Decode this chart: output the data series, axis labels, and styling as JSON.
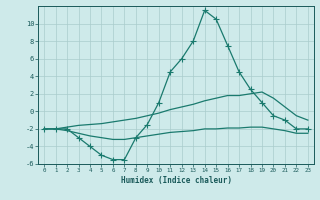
{
  "xlabel": "Humidex (Indice chaleur)",
  "x": [
    0,
    1,
    2,
    3,
    4,
    5,
    6,
    7,
    8,
    9,
    10,
    11,
    12,
    13,
    14,
    15,
    16,
    17,
    18,
    19,
    20,
    21,
    22,
    23
  ],
  "y_main": [
    -2,
    -2,
    -2,
    -3,
    -4,
    -5,
    -5.5,
    -5.5,
    -3,
    -1.5,
    1,
    4.5,
    6,
    8,
    11.5,
    10.5,
    7.5,
    4.5,
    2.5,
    1,
    -0.5,
    -1,
    -2,
    -2
  ],
  "y_upper": [
    -2,
    -2,
    -1.8,
    -1.6,
    -1.5,
    -1.4,
    -1.2,
    -1.0,
    -0.8,
    -0.5,
    -0.2,
    0.2,
    0.5,
    0.8,
    1.2,
    1.5,
    1.8,
    1.8,
    2.0,
    2.2,
    1.5,
    0.5,
    -0.5,
    -1.0
  ],
  "y_lower": [
    -2,
    -2,
    -2.2,
    -2.5,
    -2.8,
    -3.0,
    -3.2,
    -3.2,
    -3.0,
    -2.8,
    -2.6,
    -2.4,
    -2.3,
    -2.2,
    -2.0,
    -2.0,
    -1.9,
    -1.9,
    -1.8,
    -1.8,
    -2.0,
    -2.2,
    -2.5,
    -2.5
  ],
  "line_color": "#1a7a6e",
  "bg_color": "#ceeaea",
  "grid_color": "#aacccc",
  "tick_color": "#1a5a5a",
  "ylim": [
    -6,
    12
  ],
  "xlim": [
    -0.5,
    23.5
  ],
  "yticks": [
    -6,
    -4,
    -2,
    0,
    2,
    4,
    6,
    8,
    10
  ],
  "xticks": [
    0,
    1,
    2,
    3,
    4,
    5,
    6,
    7,
    8,
    9,
    10,
    11,
    12,
    13,
    14,
    15,
    16,
    17,
    18,
    19,
    20,
    21,
    22,
    23
  ]
}
